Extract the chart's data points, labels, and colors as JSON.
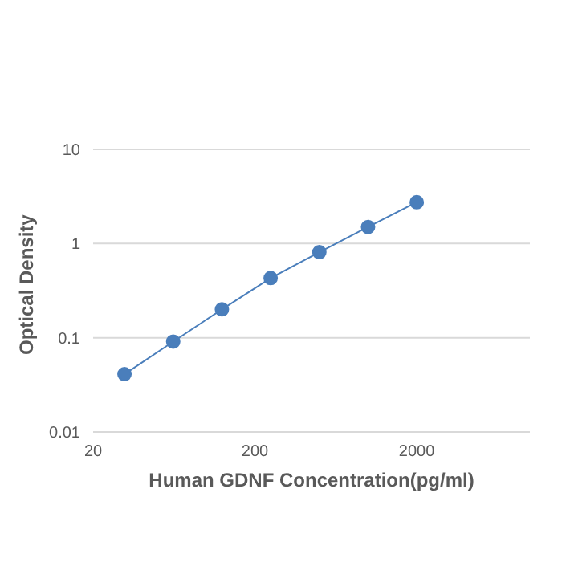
{
  "chart_data": {
    "type": "line",
    "xlabel": "Human GDNF Concentration(pg/ml)",
    "ylabel": "Optical  Density",
    "x": [
      31.25,
      62.5,
      125,
      250,
      500,
      1000,
      2000
    ],
    "series": [
      {
        "color": "#4a7ebb",
        "values": [
          0.041,
          0.091,
          0.2,
          0.43,
          0.81,
          1.5,
          2.75
        ]
      }
    ],
    "log": "xy",
    "xlim": [
      20,
      10000
    ],
    "xticks": [
      20,
      200,
      2000
    ],
    "ylim": [
      0.01,
      10
    ],
    "yticks": [
      0.01,
      0.1,
      1,
      10
    ],
    "grid": "y",
    "marker": "circle",
    "line_style": "solid"
  }
}
